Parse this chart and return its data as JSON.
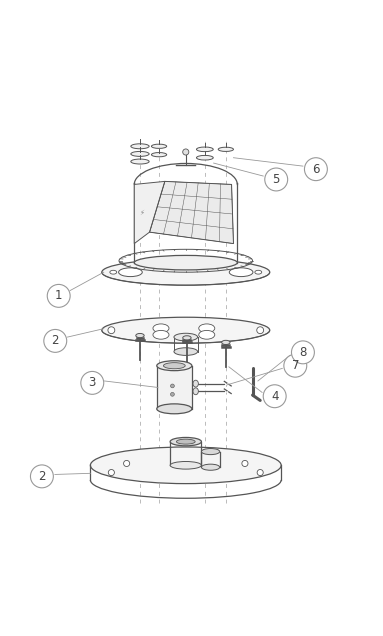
{
  "bg_color": "#ffffff",
  "line_color": "#555555",
  "label_color": "#444444",
  "circle_color": "#ffffff",
  "circle_edge_color": "#999999",
  "dashed_line_color": "#bbbbbb",
  "figsize": [
    3.83,
    6.36
  ],
  "dpi": 100
}
